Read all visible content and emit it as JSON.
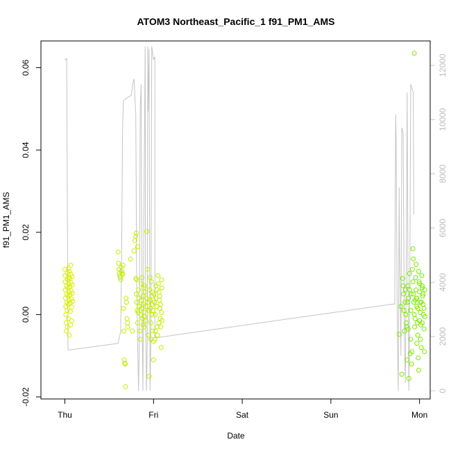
{
  "chart_data": {
    "type": "scatter",
    "title": "ATOM3 Northeast_Pacific_1 f91_PM1_AMS",
    "xlabel": "Date",
    "ylabel": "f91_PM1_AMS",
    "x_ticks": [
      "Thu",
      "Fri",
      "Sat",
      "Sun",
      "Mon"
    ],
    "x_range_days": [
      -0.27,
      4.12
    ],
    "ylim": [
      -0.0205,
      0.0665
    ],
    "y_ticks": [
      -0.02,
      0.0,
      0.02,
      0.04,
      0.06
    ],
    "y_tick_labels": [
      "-0.02",
      "0.00",
      "0.02",
      "0.04",
      "0.06"
    ],
    "y2lim": [
      -300,
      12900
    ],
    "y2_ticks": [
      0,
      2000,
      4000,
      6000,
      8000,
      10000,
      12000
    ],
    "y2_tick_labels": [
      "0",
      "2000",
      "4000",
      "6000",
      "8000",
      "10000",
      "12000"
    ],
    "grid": false,
    "legend": "none",
    "colors": {
      "points_thu": "#d9ee00",
      "points_fri": "#c2ee00",
      "points_mon": "#7ae800",
      "line": "#c4c4c4",
      "axis": "#000000",
      "right_axis": "#c8c8c8"
    },
    "series": [
      {
        "kind": "points",
        "points": [
          [
            0.0,
            0.011
          ],
          [
            0.002,
            0.0095
          ],
          [
            0.004,
            0.008
          ],
          [
            0.006,
            0.006
          ],
          [
            0.008,
            0.004
          ],
          [
            0.01,
            0.002
          ],
          [
            0.012,
            0.0
          ],
          [
            0.014,
            -0.002
          ],
          [
            0.016,
            -0.004
          ],
          [
            0.018,
            0.007
          ],
          [
            0.02,
            0.005
          ],
          [
            0.022,
            0.003
          ],
          [
            0.024,
            0.001
          ],
          [
            0.026,
            -0.003
          ],
          [
            0.028,
            0.01
          ],
          [
            0.03,
            0.0085
          ],
          [
            0.032,
            0.0065
          ],
          [
            0.034,
            0.0045
          ],
          [
            0.036,
            0.0025
          ],
          [
            0.038,
            -0.001
          ],
          [
            0.04,
            0.0112
          ],
          [
            0.042,
            0.009
          ],
          [
            0.044,
            0.0075
          ],
          [
            0.046,
            0.0055
          ],
          [
            0.048,
            0.0035
          ],
          [
            0.05,
            -0.005
          ],
          [
            0.052,
            0.0105
          ],
          [
            0.054,
            0.0088
          ],
          [
            0.056,
            0.0068
          ],
          [
            0.058,
            0.0048
          ],
          [
            0.06,
            0.0028
          ],
          [
            0.062,
            0.0008
          ],
          [
            0.064,
            -0.0025
          ],
          [
            0.066,
            0.012
          ],
          [
            0.068,
            0.0098
          ],
          [
            0.07,
            0.0078
          ],
          [
            0.072,
            0.0058
          ],
          [
            0.074,
            0.0038
          ],
          [
            0.076,
            0.0018
          ],
          [
            0.078,
            -0.0015
          ],
          [
            0.08,
            0.0092
          ],
          [
            0.082,
            0.0072
          ],
          [
            0.084,
            0.0052
          ],
          [
            0.086,
            0.0032
          ]
        ]
      },
      {
        "kind": "points",
        "points": [
          [
            0.6,
            0.0152
          ],
          [
            0.605,
            0.0125
          ],
          [
            0.61,
            0.011
          ],
          [
            0.615,
            0.01
          ],
          [
            0.62,
            0.0095
          ],
          [
            0.625,
            0.009
          ],
          [
            0.63,
            0.0085
          ],
          [
            0.635,
            0.0115
          ],
          [
            0.64,
            0.0105
          ],
          [
            0.645,
            0.01
          ],
          [
            0.65,
            0.0098
          ],
          [
            0.655,
            0.012
          ],
          [
            0.66,
            0.0015
          ],
          [
            0.665,
            -0.004
          ],
          [
            0.67,
            -0.011
          ],
          [
            0.675,
            -0.0118
          ],
          [
            0.68,
            -0.012
          ],
          [
            0.685,
            -0.0175
          ],
          [
            0.69,
            0.004
          ],
          [
            0.695,
            0.003
          ],
          [
            0.7,
            -0.001
          ],
          [
            0.705,
            -0.002
          ],
          [
            0.71,
            -0.003
          ],
          [
            0.74,
            0.0135
          ],
          [
            0.76,
            -0.004
          ],
          [
            0.78,
            0.0155
          ],
          [
            0.79,
            0.018
          ],
          [
            0.8,
            0.019
          ],
          [
            0.805,
            0.0198
          ],
          [
            0.81,
            0.0085
          ],
          [
            0.82,
            0.0165
          ],
          [
            0.825,
            0.0005
          ]
        ]
      },
      {
        "kind": "points",
        "points": [
          [
            0.8,
            0.0088
          ],
          [
            0.805,
            0.005
          ],
          [
            0.81,
            0.003
          ],
          [
            0.815,
            0.001
          ],
          [
            0.82,
            -0.002
          ],
          [
            0.83,
            0.006
          ],
          [
            0.835,
            0.004
          ],
          [
            0.84,
            0.002
          ],
          [
            0.845,
            -0.004
          ],
          [
            0.85,
            -0.006
          ],
          [
            0.855,
            0.0
          ],
          [
            0.86,
            0.0075
          ],
          [
            0.865,
            0.0035
          ],
          [
            0.87,
            0.0015
          ],
          [
            0.875,
            -0.001
          ],
          [
            0.88,
            0.0045
          ],
          [
            0.885,
            0.0025
          ],
          [
            0.89,
            0.0005
          ],
          [
            0.895,
            -0.003
          ],
          [
            0.9,
            0.007
          ],
          [
            0.905,
            0.0055
          ],
          [
            0.91,
            0.002
          ],
          [
            0.915,
            -0.0015
          ],
          [
            0.92,
            0.004
          ],
          [
            0.925,
            0.0202
          ],
          [
            0.93,
            0.011
          ],
          [
            0.935,
            0.003
          ],
          [
            0.94,
            -0.005
          ],
          [
            0.945,
            0.001
          ],
          [
            0.95,
            -0.015
          ],
          [
            0.955,
            0.006
          ],
          [
            0.96,
            0.0035
          ],
          [
            0.965,
            0.0015
          ],
          [
            0.97,
            -0.002
          ],
          [
            0.975,
            0.008
          ],
          [
            0.98,
            0.0045
          ],
          [
            0.985,
            0.0025
          ],
          [
            0.99,
            -0.004
          ],
          [
            0.995,
            0.001
          ],
          [
            1.0,
            -0.0065
          ],
          [
            1.005,
            0.005
          ],
          [
            1.01,
            0.003
          ],
          [
            1.015,
            -0.006
          ],
          [
            1.02,
            0.0
          ],
          [
            1.025,
            0.007
          ],
          [
            1.03,
            0.004
          ],
          [
            1.035,
            0.002
          ],
          [
            1.04,
            -0.003
          ],
          [
            1.045,
            -0.005
          ],
          [
            1.05,
            0.0095
          ],
          [
            1.055,
            0.0075
          ],
          [
            1.06,
            0.0055
          ],
          [
            1.065,
            0.0035
          ],
          [
            1.07,
            0.0015
          ],
          [
            1.075,
            -0.001
          ],
          [
            1.08,
            -0.003
          ],
          [
            1.085,
            -0.008
          ],
          [
            1.09,
            0.0085
          ],
          [
            1.095,
            0.0065
          ],
          [
            1.0,
            -0.011
          ],
          [
            0.87,
            0.009
          ],
          [
            0.88,
            -0.0025
          ],
          [
            0.89,
            0.0065
          ],
          [
            0.9,
            -0.0005
          ],
          [
            0.96,
            0.009
          ],
          [
            0.97,
            -0.006
          ],
          [
            0.98,
            0.0
          ],
          [
            0.99,
            0.0055
          ],
          [
            1.02,
            -0.004
          ],
          [
            1.04,
            0.006
          ],
          [
            1.06,
            -0.002
          ],
          [
            1.07,
            0.0045
          ],
          [
            1.08,
            0.0025
          ],
          [
            1.09,
            0.0005
          ],
          [
            1.095,
            -0.0015
          ]
        ]
      },
      {
        "kind": "points",
        "points": [
          [
            3.77,
            -0.0048
          ],
          [
            3.79,
            0.002
          ],
          [
            3.8,
            -0.0145
          ],
          [
            3.81,
            0.0088
          ],
          [
            3.815,
            0.007
          ],
          [
            3.82,
            0.005
          ],
          [
            3.825,
            0.001
          ],
          [
            3.83,
            -0.004
          ],
          [
            3.835,
            0.003
          ],
          [
            3.84,
            0.006
          ],
          [
            3.845,
            0.0
          ],
          [
            3.85,
            -0.002
          ],
          [
            3.855,
            -0.003
          ],
          [
            3.86,
            -0.011
          ],
          [
            3.865,
            0.003
          ],
          [
            3.87,
            0.007
          ],
          [
            3.875,
            0.004
          ],
          [
            3.88,
            -0.0155
          ],
          [
            3.885,
            0.01
          ],
          [
            3.89,
            0.006
          ],
          [
            3.895,
            -0.0095
          ],
          [
            3.9,
            0.001
          ],
          [
            3.905,
            0.005
          ],
          [
            3.91,
            -0.012
          ],
          [
            3.915,
            -0.009
          ],
          [
            3.92,
            0.011
          ],
          [
            3.925,
            0.008
          ],
          [
            3.93,
            0.005
          ],
          [
            3.935,
            0.003
          ],
          [
            3.94,
            0.0
          ],
          [
            3.945,
            -0.003
          ],
          [
            3.95,
            -0.001
          ],
          [
            3.955,
            0.009
          ],
          [
            3.96,
            0.006
          ],
          [
            3.965,
            0.004
          ],
          [
            3.97,
            0.002
          ],
          [
            3.975,
            -0.002
          ],
          [
            3.98,
            -0.005
          ],
          [
            3.985,
            -0.0105
          ],
          [
            3.99,
            0.0105
          ],
          [
            3.995,
            0.008
          ],
          [
            4.0,
            0.0055
          ],
          [
            4.005,
            0.003
          ],
          [
            4.01,
            0.0005
          ],
          [
            4.015,
            -0.0025
          ],
          [
            4.02,
            -0.008
          ],
          [
            4.025,
            0.0095
          ],
          [
            4.03,
            0.0065
          ],
          [
            4.035,
            0.0045
          ],
          [
            4.04,
            0.0025
          ],
          [
            4.045,
            0.0
          ],
          [
            4.05,
            -0.0035
          ],
          [
            4.055,
            -0.009
          ],
          [
            4.06,
            0.006
          ],
          [
            3.925,
            0.016
          ],
          [
            3.93,
            0.0135
          ],
          [
            3.94,
            0.0635
          ],
          [
            3.96,
            0.0122
          ],
          [
            3.97,
            0.004
          ],
          [
            3.99,
            -0.0135
          ],
          [
            4.0,
            0.0075
          ],
          [
            4.01,
            -0.006
          ],
          [
            4.02,
            0.003
          ],
          [
            4.03,
            -0.002
          ],
          [
            4.04,
            0.005
          ],
          [
            4.05,
            0.0015
          ],
          [
            3.87,
            -0.0035
          ],
          [
            3.9,
            -0.006
          ],
          [
            3.95,
            0.0035
          ],
          [
            3.98,
            0.0015
          ],
          [
            4.0,
            -0.0015
          ],
          [
            4.03,
            0.007
          ],
          [
            4.06,
            -0.0005
          ],
          [
            3.97,
            -0.007
          ]
        ]
      },
      {
        "kind": "line",
        "points": [
          [
            0.0,
            12250
          ],
          [
            0.01,
            12200
          ],
          [
            0.02,
            12250
          ],
          [
            0.035,
            1500
          ],
          [
            0.6,
            1750
          ],
          [
            0.63,
            2200
          ],
          [
            0.64,
            5000
          ],
          [
            0.65,
            9500
          ],
          [
            0.66,
            10700
          ],
          [
            0.7,
            10800
          ],
          [
            0.75,
            10900
          ],
          [
            0.77,
            11400
          ],
          [
            0.78,
            11500
          ],
          [
            0.79,
            10800
          ],
          [
            0.8,
            10200
          ],
          [
            0.81,
            4000
          ],
          [
            0.83,
            0
          ],
          [
            0.84,
            1700
          ],
          [
            0.85,
            10400
          ],
          [
            0.86,
            11300
          ],
          [
            0.87,
            3000
          ],
          [
            0.88,
            0
          ],
          [
            0.89,
            6000
          ],
          [
            0.905,
            12700
          ],
          [
            0.91,
            3000
          ],
          [
            0.92,
            0
          ],
          [
            0.93,
            1800
          ],
          [
            0.935,
            12700
          ],
          [
            0.94,
            10300
          ],
          [
            0.95,
            12600
          ],
          [
            0.96,
            0
          ],
          [
            0.97,
            2000
          ],
          [
            0.98,
            12700
          ],
          [
            1.0,
            12200
          ],
          [
            1.01,
            12300
          ],
          [
            1.015,
            12300
          ],
          [
            1.015,
            1950
          ],
          [
            3.7,
            3200
          ],
          [
            3.72,
            3200
          ],
          [
            3.73,
            10200
          ],
          [
            3.735,
            9500
          ],
          [
            3.75,
            2000
          ],
          [
            3.76,
            0
          ],
          [
            3.77,
            7500
          ],
          [
            3.775,
            5000
          ],
          [
            3.78,
            4000
          ],
          [
            3.79,
            1300
          ],
          [
            3.8,
            9700
          ],
          [
            3.815,
            9500
          ],
          [
            3.83,
            1700
          ],
          [
            3.84,
            300
          ],
          [
            3.85,
            4500
          ],
          [
            3.86,
            11000
          ],
          [
            3.87,
            3800
          ],
          [
            3.88,
            0
          ],
          [
            3.89,
            3500
          ],
          [
            3.9,
            11300
          ],
          [
            3.91,
            11200
          ],
          [
            3.92,
            11100
          ],
          [
            3.93,
            11000
          ],
          [
            3.935,
            6500
          ]
        ]
      }
    ]
  }
}
